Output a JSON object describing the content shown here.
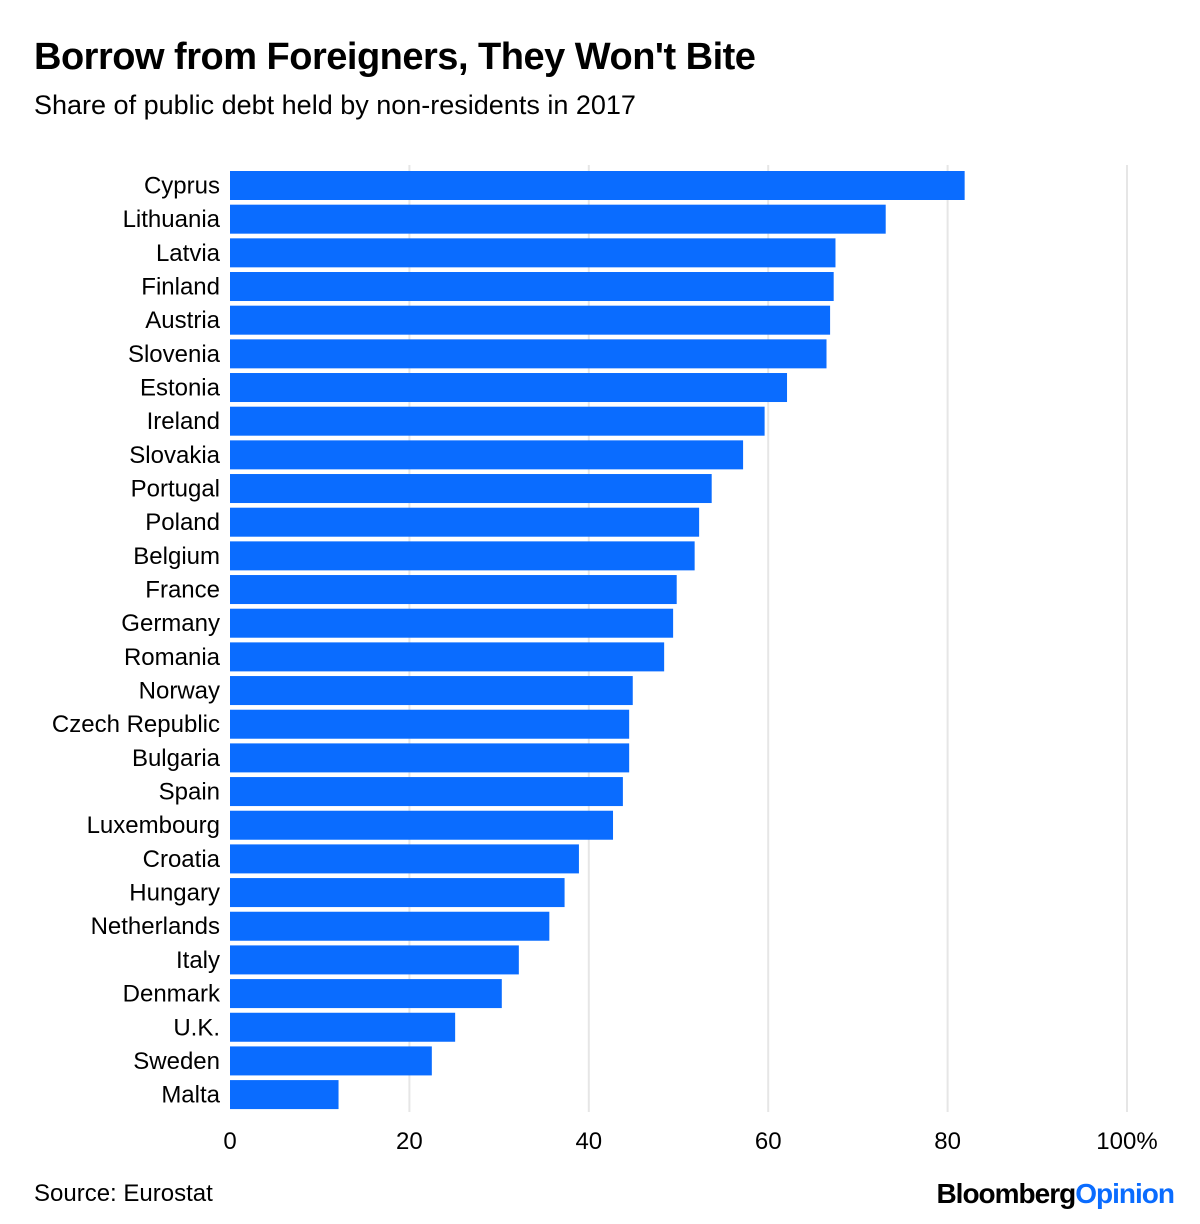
{
  "chart_data": {
    "type": "bar",
    "orientation": "horizontal",
    "title": "Borrow from Foreigners, They Won't Bite",
    "subtitle": "Share of public debt held by non-residents in 2017",
    "categories": [
      "Cyprus",
      "Lithuania",
      "Latvia",
      "Finland",
      "Austria",
      "Slovenia",
      "Estonia",
      "Ireland",
      "Slovakia",
      "Portugal",
      "Poland",
      "Belgium",
      "France",
      "Germany",
      "Romania",
      "Norway",
      "Czech Republic",
      "Bulgaria",
      "Spain",
      "Luxembourg",
      "Croatia",
      "Hungary",
      "Netherlands",
      "Italy",
      "Denmark",
      "U.K.",
      "Sweden",
      "Malta"
    ],
    "values": [
      81.9,
      73.1,
      67.5,
      67.3,
      66.9,
      66.5,
      62.1,
      59.6,
      57.2,
      53.7,
      52.3,
      51.8,
      49.8,
      49.4,
      48.4,
      44.9,
      44.5,
      44.5,
      43.8,
      42.7,
      38.9,
      37.3,
      35.6,
      32.2,
      30.3,
      25.1,
      22.5,
      12.1
    ],
    "xlim": [
      0,
      100
    ],
    "xticks": [
      0,
      20,
      40,
      60,
      80,
      100
    ],
    "xtick_labels": [
      "0",
      "20",
      "40",
      "60",
      "80",
      "100%"
    ],
    "grid": true,
    "bar_color": "#0a6cff",
    "grid_color": "#e6e6e6"
  },
  "footer": {
    "source": "Source: Eurostat",
    "logo_part1": "Bloomberg",
    "logo_part2": "Opinion"
  }
}
